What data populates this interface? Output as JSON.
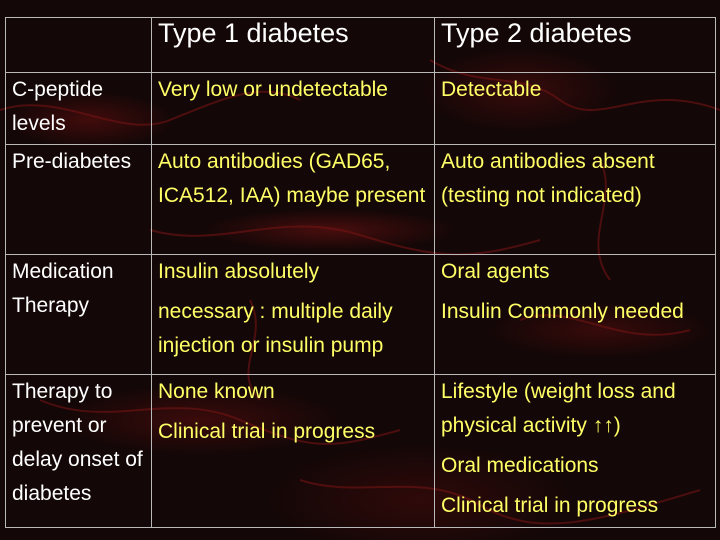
{
  "header": {
    "col1": "Type 1 diabetes",
    "col2": "Type 2 diabetes"
  },
  "rows": [
    {
      "label": "C-peptide levels",
      "type1": [
        "Very low or undetectable"
      ],
      "type2": [
        "Detectable"
      ]
    },
    {
      "label": "Pre-diabetes",
      "type1": [
        "Auto antibodies (GAD65, ICA512, IAA) maybe present"
      ],
      "type2": [
        "Auto antibodies absent (testing not indicated)"
      ]
    },
    {
      "label": "Medication Therapy",
      "type1": [
        "Insulin absolutely",
        "necessary : multiple daily injection or insulin pump"
      ],
      "type2": [
        "Oral agents",
        "Insulin Commonly needed"
      ]
    },
    {
      "label": "Therapy to prevent or delay onset of diabetes",
      "type1": [
        "None known",
        "Clinical trial in progress"
      ],
      "type2": [
        "Lifestyle (weight loss and physical activity ↑↑)",
        "Oral medications",
        "Clinical trial in progress"
      ]
    }
  ]
}
